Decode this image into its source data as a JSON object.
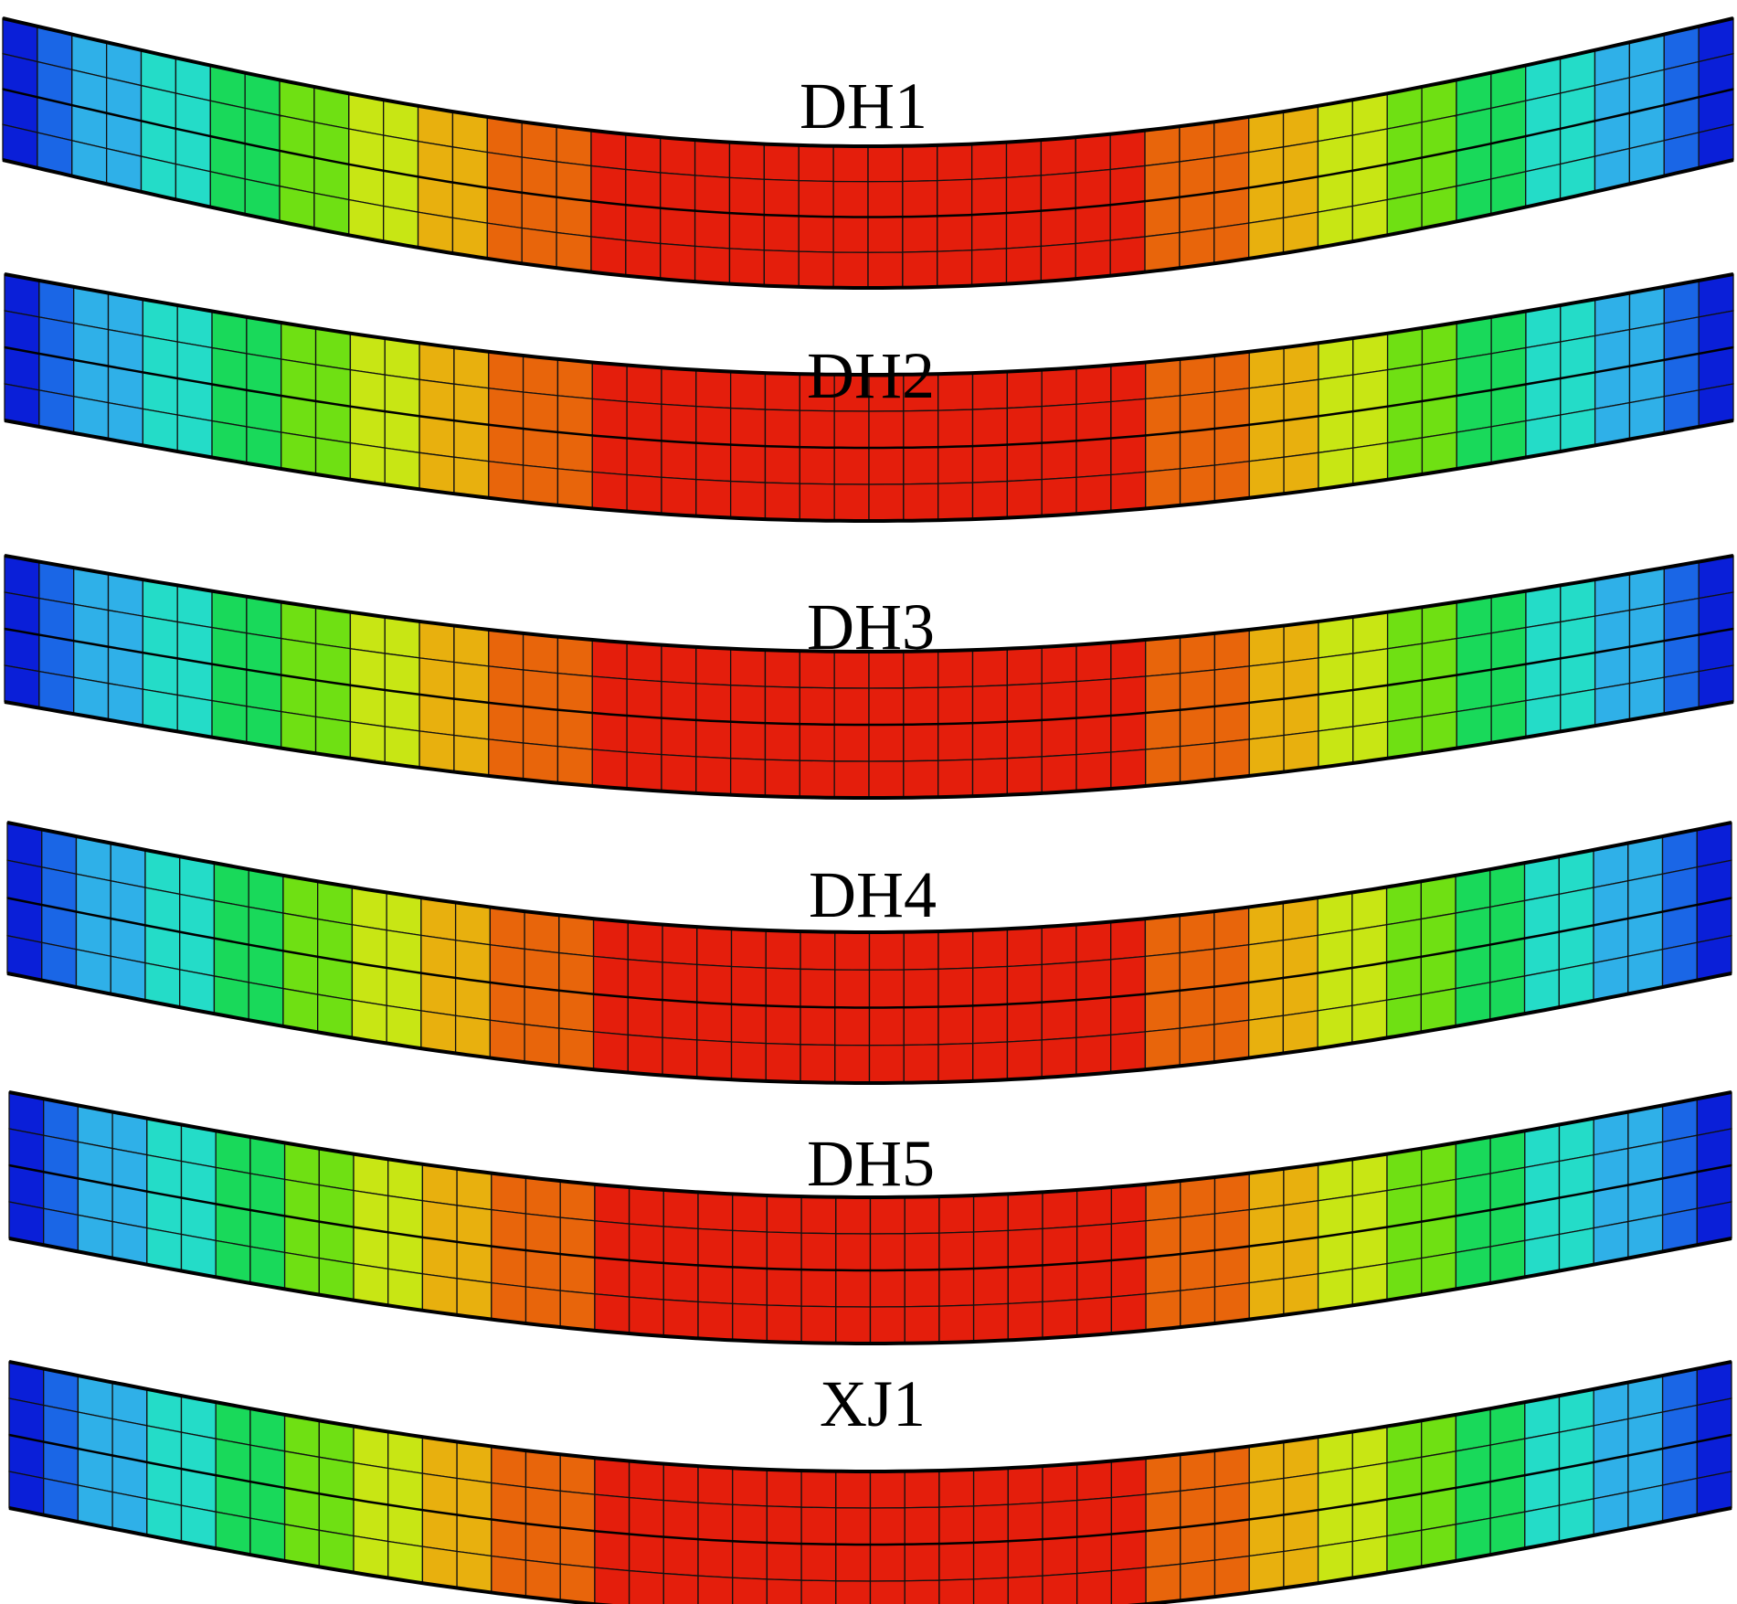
{
  "figure": {
    "beams": [
      {
        "label": "DH1"
      },
      {
        "label": "DH2"
      },
      {
        "label": "DH3"
      },
      {
        "label": "DH4"
      },
      {
        "label": "DH5"
      },
      {
        "label": "XJ1"
      }
    ],
    "colormap": [
      "#0a1fd8",
      "#1a66e6",
      "#2fb0e8",
      "#24dcc8",
      "#19d95a",
      "#6fe013",
      "#c8e614",
      "#e8b00e",
      "#e8650b",
      "#e41e0c"
    ],
    "mesh_line_color": "#111111",
    "background": "#ffffff"
  }
}
